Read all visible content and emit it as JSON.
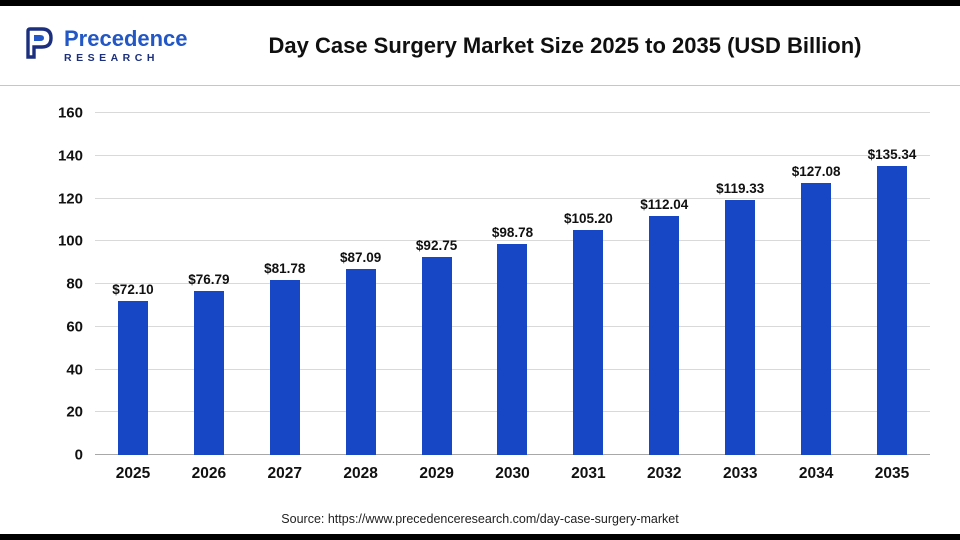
{
  "header": {
    "logo": {
      "line1": "Precedence",
      "line2": "RESEARCH"
    },
    "title": "Day Case Surgery Market Size 2025 to 2035 (USD Billion)"
  },
  "chart_data": {
    "type": "bar",
    "title": "Day Case Surgery Market Size 2025 to 2035 (USD Billion)",
    "categories": [
      "2025",
      "2026",
      "2027",
      "2028",
      "2029",
      "2030",
      "2031",
      "2032",
      "2033",
      "2034",
      "2035"
    ],
    "values": [
      72.1,
      76.79,
      81.78,
      87.09,
      92.75,
      98.78,
      105.2,
      112.04,
      119.33,
      127.08,
      135.34
    ],
    "labels": [
      "$72.10",
      "$76.79",
      "$81.78",
      "$87.09",
      "$92.75",
      "$98.78",
      "$105.20",
      "$112.04",
      "$119.33",
      "$127.08",
      "$135.34"
    ],
    "unit": "USD Billion",
    "xlabel": "",
    "ylabel": "",
    "ylim": [
      0,
      160
    ],
    "yticks": [
      0,
      20,
      40,
      60,
      80,
      100,
      120,
      140,
      160
    ],
    "bar_color": "#1747C5",
    "grid": true,
    "legend_position": "none"
  },
  "footer": {
    "source": "Source: https://www.precedenceresearch.com/day-case-surgery-market"
  }
}
